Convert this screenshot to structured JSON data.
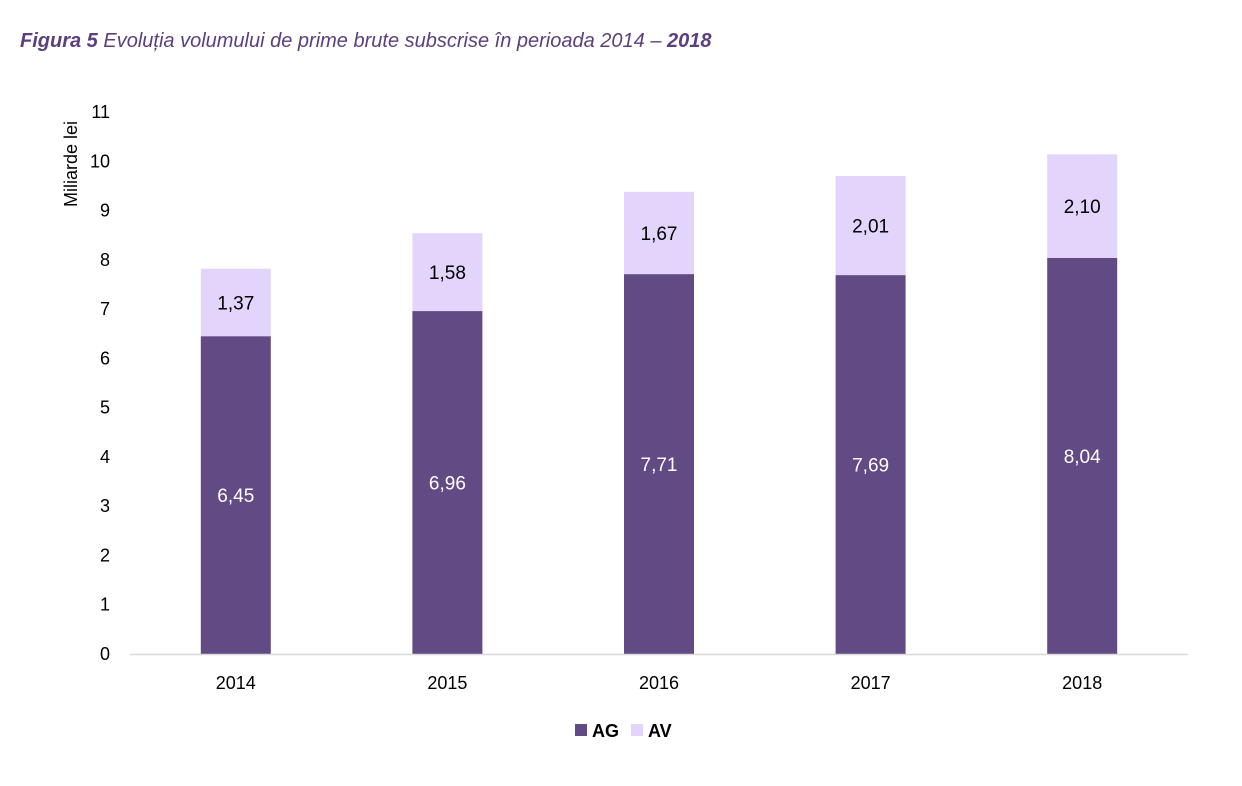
{
  "figure": {
    "label": "Figura 5",
    "title_main": "Evoluția volumului de prime brute subscrise în perioada 2014 – ",
    "title_end": "2018"
  },
  "chart_data": {
    "type": "bar",
    "stacked": true,
    "categories": [
      "2014",
      "2015",
      "2016",
      "2017",
      "2018"
    ],
    "series": [
      {
        "name": "AG",
        "values": [
          6.45,
          6.96,
          7.71,
          7.69,
          8.04
        ],
        "labels": [
          "6,45",
          "6,96",
          "7,71",
          "7,69",
          "8,04"
        ],
        "color": "#624a85",
        "label_color": "#ffffff"
      },
      {
        "name": "AV",
        "values": [
          1.37,
          1.58,
          1.67,
          2.01,
          2.1
        ],
        "labels": [
          "1,37",
          "1,58",
          "1,67",
          "2,01",
          "2,10"
        ],
        "color": "#e2d4fb",
        "label_color": "#000000"
      }
    ],
    "ylabel": "Miliarde lei",
    "xlabel": "",
    "ylim": [
      0,
      11
    ],
    "yticks": [
      "0",
      "1",
      "2",
      "3",
      "4",
      "5",
      "6",
      "7",
      "8",
      "9",
      "10",
      "11"
    ],
    "grid": false,
    "legend_position": "bottom-center",
    "axis_color": "#d9d9d9"
  }
}
